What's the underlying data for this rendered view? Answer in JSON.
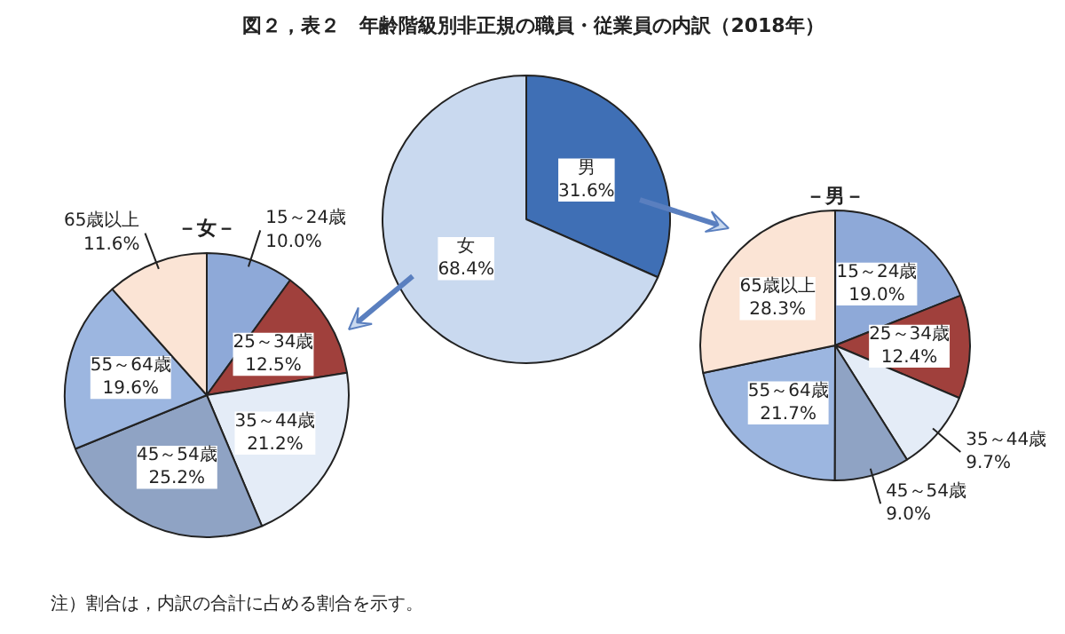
{
  "chart_data": [
    {
      "type": "pie",
      "title": "図２，表２　年齢階級別非正規の職員・従業員の内訳（2018年）",
      "categories": [
        "男",
        "女"
      ],
      "values": [
        31.6,
        68.4
      ],
      "value_labels": [
        "31.6%",
        "68.4%"
      ],
      "colors": [
        "#3f6fb5",
        "#c9d9ef"
      ],
      "annotations": [
        "注）割合は，内訳の合計に占める割合を示す。"
      ]
    },
    {
      "type": "pie",
      "title": "－女－",
      "categories": [
        "15～24歳",
        "25～34歳",
        "35～44歳",
        "45～54歳",
        "55～64歳",
        "65歳以上"
      ],
      "values": [
        10.0,
        12.5,
        21.2,
        25.2,
        19.6,
        11.6
      ],
      "value_labels": [
        "10.0%",
        "12.5%",
        "21.2%",
        "25.2%",
        "19.6%",
        "11.6%"
      ],
      "colors": [
        "#8ea9d8",
        "#a0403c",
        "#e4ecf7",
        "#8fa3c4",
        "#9cb6e0",
        "#fbe4d5"
      ]
    },
    {
      "type": "pie",
      "title": "－男－",
      "categories": [
        "15～24歳",
        "25～34歳",
        "35～44歳",
        "45～54歳",
        "55～64歳",
        "65歳以上"
      ],
      "values": [
        19.0,
        12.4,
        9.7,
        9.0,
        21.7,
        28.3
      ],
      "value_labels": [
        "19.0%",
        "12.4%",
        "9.7%",
        "9.0%",
        "21.7%",
        "28.3%"
      ],
      "colors": [
        "#8ea9d8",
        "#a0403c",
        "#e4ecf7",
        "#8fa3c4",
        "#9cb6e0",
        "#fbe4d5"
      ]
    }
  ]
}
